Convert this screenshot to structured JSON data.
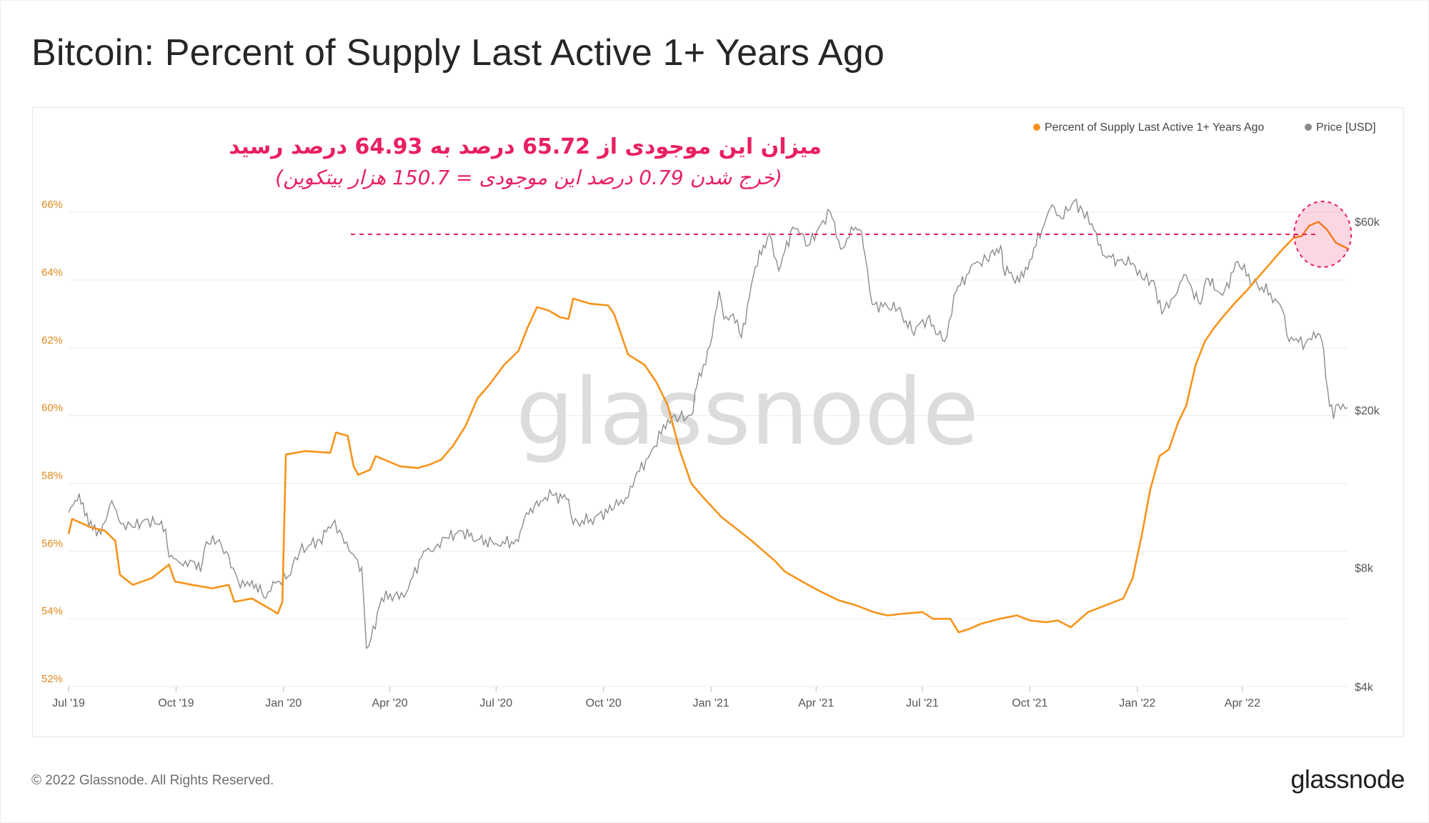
{
  "title": "Bitcoin: Percent of Supply Last Active 1+ Years Ago",
  "footer": {
    "copyright": "© 2022 Glassnode. All Rights Reserved.",
    "logo": "glassnode"
  },
  "watermark": "glassnode",
  "annotation": {
    "line1": "میزان این موجودی از 65.72 درصد به 64.93 درصد رسید",
    "line2": "(خرج شدن 0.79 درصد این موجودی = 150.7 هزار بیتکوین)",
    "color": "#e8205f",
    "reference_level": 65.35
  },
  "colors": {
    "supply": "#f7931a",
    "price": "#8c8c8c",
    "accent": "#e8205f"
  },
  "chart_data": {
    "type": "line",
    "title": "Bitcoin: Percent of Supply Last Active 1+ Years Ago",
    "x_ticks": [
      "Jul '19",
      "Oct '19",
      "Jan '20",
      "Apr '20",
      "Jul '20",
      "Oct '20",
      "Jan '21",
      "Apr '21",
      "Jul '21",
      "Oct '21",
      "Jan '22",
      "Apr '22"
    ],
    "x_tick_dates": [
      "2019-07-01",
      "2019-10-01",
      "2020-01-01",
      "2020-04-01",
      "2020-07-01",
      "2020-10-01",
      "2021-01-01",
      "2021-04-01",
      "2021-07-01",
      "2021-10-01",
      "2022-01-01",
      "2022-04-01"
    ],
    "x_range": [
      "2019-07-01",
      "2022-06-30"
    ],
    "y_left": {
      "ticks": [
        "52%",
        "54%",
        "56%",
        "58%",
        "60%",
        "62%",
        "64%",
        "66%"
      ],
      "range": [
        52,
        67.5
      ],
      "unit": "%"
    },
    "y_right": {
      "ticks": [
        "$4k",
        "$8k",
        "$20k",
        "$60k"
      ],
      "tick_values": [
        4000,
        8000,
        20000,
        60000
      ],
      "scale": "log",
      "range": [
        4000,
        85000
      ]
    },
    "grid": true,
    "legend": {
      "placement": "top-right",
      "entries": [
        "Percent of Supply Last Active 1+ Years Ago",
        "Price [USD]"
      ]
    },
    "series": [
      {
        "name": "Percent of Supply Last Active 1+ Years Ago",
        "axis": "left",
        "color": "#f7931a",
        "points": [
          [
            "2019-07-01",
            56.5
          ],
          [
            "2019-07-04",
            56.95
          ],
          [
            "2019-07-20",
            56.7
          ],
          [
            "2019-08-01",
            56.6
          ],
          [
            "2019-08-10",
            56.3
          ],
          [
            "2019-08-14",
            55.3
          ],
          [
            "2019-08-25",
            55.0
          ],
          [
            "2019-09-10",
            55.2
          ],
          [
            "2019-09-25",
            55.6
          ],
          [
            "2019-09-30",
            55.1
          ],
          [
            "2019-10-15",
            55.0
          ],
          [
            "2019-11-01",
            54.9
          ],
          [
            "2019-11-15",
            55.0
          ],
          [
            "2019-11-20",
            54.5
          ],
          [
            "2019-12-05",
            54.6
          ],
          [
            "2019-12-20",
            54.3
          ],
          [
            "2019-12-27",
            54.15
          ],
          [
            "2019-12-31",
            54.5
          ],
          [
            "2020-01-03",
            58.85
          ],
          [
            "2020-01-20",
            58.95
          ],
          [
            "2020-02-10",
            58.9
          ],
          [
            "2020-02-15",
            59.5
          ],
          [
            "2020-02-25",
            59.4
          ],
          [
            "2020-03-01",
            58.5
          ],
          [
            "2020-03-05",
            58.25
          ],
          [
            "2020-03-15",
            58.4
          ],
          [
            "2020-03-20",
            58.8
          ],
          [
            "2020-04-10",
            58.5
          ],
          [
            "2020-04-25",
            58.45
          ],
          [
            "2020-05-05",
            58.55
          ],
          [
            "2020-05-15",
            58.7
          ],
          [
            "2020-05-25",
            59.1
          ],
          [
            "2020-06-05",
            59.7
          ],
          [
            "2020-06-15",
            60.5
          ],
          [
            "2020-06-25",
            60.9
          ],
          [
            "2020-07-08",
            61.5
          ],
          [
            "2020-07-20",
            61.9
          ],
          [
            "2020-07-28",
            62.6
          ],
          [
            "2020-08-05",
            63.2
          ],
          [
            "2020-08-15",
            63.1
          ],
          [
            "2020-08-25",
            62.9
          ],
          [
            "2020-09-01",
            62.85
          ],
          [
            "2020-09-05",
            63.45
          ],
          [
            "2020-09-20",
            63.3
          ],
          [
            "2020-10-05",
            63.25
          ],
          [
            "2020-10-10",
            63.0
          ],
          [
            "2020-10-15",
            62.5
          ],
          [
            "2020-10-22",
            61.8
          ],
          [
            "2020-11-05",
            61.5
          ],
          [
            "2020-11-15",
            61.0
          ],
          [
            "2020-11-25",
            60.3
          ],
          [
            "2020-12-05",
            59.0
          ],
          [
            "2020-12-15",
            58.0
          ],
          [
            "2020-12-25",
            57.6
          ],
          [
            "2021-01-10",
            57.0
          ],
          [
            "2021-01-25",
            56.6
          ],
          [
            "2021-02-05",
            56.3
          ],
          [
            "2021-02-15",
            56.0
          ],
          [
            "2021-02-25",
            55.7
          ],
          [
            "2021-03-05",
            55.4
          ],
          [
            "2021-03-20",
            55.1
          ],
          [
            "2021-04-05",
            54.8
          ],
          [
            "2021-04-20",
            54.55
          ],
          [
            "2021-05-05",
            54.4
          ],
          [
            "2021-05-20",
            54.2
          ],
          [
            "2021-06-01",
            54.1
          ],
          [
            "2021-06-15",
            54.15
          ],
          [
            "2021-07-01",
            54.2
          ],
          [
            "2021-07-10",
            54.0
          ],
          [
            "2021-07-25",
            54.0
          ],
          [
            "2021-08-01",
            53.6
          ],
          [
            "2021-08-10",
            53.7
          ],
          [
            "2021-08-20",
            53.85
          ],
          [
            "2021-09-05",
            54.0
          ],
          [
            "2021-09-20",
            54.1
          ],
          [
            "2021-10-01",
            53.95
          ],
          [
            "2021-10-15",
            53.9
          ],
          [
            "2021-10-25",
            53.95
          ],
          [
            "2021-11-05",
            53.75
          ],
          [
            "2021-11-10",
            53.9
          ],
          [
            "2021-11-20",
            54.2
          ],
          [
            "2021-12-05",
            54.4
          ],
          [
            "2021-12-20",
            54.6
          ],
          [
            "2021-12-28",
            55.2
          ],
          [
            "2022-01-05",
            56.5
          ],
          [
            "2022-01-12",
            57.8
          ],
          [
            "2022-01-20",
            58.8
          ],
          [
            "2022-01-28",
            59.0
          ],
          [
            "2022-02-05",
            59.8
          ],
          [
            "2022-02-12",
            60.3
          ],
          [
            "2022-02-20",
            61.5
          ],
          [
            "2022-02-28",
            62.2
          ],
          [
            "2022-03-08",
            62.6
          ],
          [
            "2022-03-15",
            62.9
          ],
          [
            "2022-03-25",
            63.3
          ],
          [
            "2022-04-05",
            63.7
          ],
          [
            "2022-04-15",
            64.1
          ],
          [
            "2022-04-25",
            64.5
          ],
          [
            "2022-05-05",
            64.9
          ],
          [
            "2022-05-15",
            65.25
          ],
          [
            "2022-05-22",
            65.3
          ],
          [
            "2022-05-28",
            65.6
          ],
          [
            "2022-06-05",
            65.72
          ],
          [
            "2022-06-12",
            65.5
          ],
          [
            "2022-06-20",
            65.1
          ],
          [
            "2022-06-30",
            64.93
          ]
        ]
      },
      {
        "name": "Price [USD]",
        "axis": "right",
        "color": "#8c8c8c",
        "points": [
          [
            "2019-07-01",
            11000
          ],
          [
            "2019-07-05",
            11500
          ],
          [
            "2019-07-10",
            12300
          ],
          [
            "2019-07-15",
            10800
          ],
          [
            "2019-07-20",
            10500
          ],
          [
            "2019-07-25",
            9600
          ],
          [
            "2019-08-01",
            10400
          ],
          [
            "2019-08-07",
            11800
          ],
          [
            "2019-08-15",
            10300
          ],
          [
            "2019-08-25",
            10100
          ],
          [
            "2019-09-05",
            10600
          ],
          [
            "2019-09-15",
            10300
          ],
          [
            "2019-09-22",
            10000
          ],
          [
            "2019-09-25",
            8500
          ],
          [
            "2019-10-05",
            8200
          ],
          [
            "2019-10-15",
            8300
          ],
          [
            "2019-10-22",
            7800
          ],
          [
            "2019-10-27",
            9300
          ],
          [
            "2019-11-05",
            9300
          ],
          [
            "2019-11-15",
            8600
          ],
          [
            "2019-11-25",
            7100
          ],
          [
            "2019-12-05",
            7400
          ],
          [
            "2019-12-17",
            6700
          ],
          [
            "2019-12-25",
            7300
          ],
          [
            "2020-01-05",
            7600
          ],
          [
            "2020-01-15",
            8800
          ],
          [
            "2020-02-01",
            9400
          ],
          [
            "2020-02-12",
            10300
          ],
          [
            "2020-02-20",
            9700
          ],
          [
            "2020-02-28",
            8700
          ],
          [
            "2020-03-08",
            8000
          ],
          [
            "2020-03-12",
            5000
          ],
          [
            "2020-03-16",
            5300
          ],
          [
            "2020-03-25",
            6700
          ],
          [
            "2020-04-05",
            6800
          ],
          [
            "2020-04-15",
            6900
          ],
          [
            "2020-04-30",
            8800
          ],
          [
            "2020-05-10",
            9000
          ],
          [
            "2020-05-20",
            9500
          ],
          [
            "2020-06-01",
            9900
          ],
          [
            "2020-06-15",
            9400
          ],
          [
            "2020-07-01",
            9200
          ],
          [
            "2020-07-20",
            9300
          ],
          [
            "2020-07-27",
            11000
          ],
          [
            "2020-08-10",
            11800
          ],
          [
            "2020-08-18",
            12200
          ],
          [
            "2020-09-01",
            11900
          ],
          [
            "2020-09-05",
            10300
          ],
          [
            "2020-09-20",
            10600
          ],
          [
            "2020-10-10",
            11300
          ],
          [
            "2020-10-20",
            12000
          ],
          [
            "2020-10-28",
            13500
          ],
          [
            "2020-11-10",
            15500
          ],
          [
            "2020-11-25",
            18900
          ],
          [
            "2020-12-05",
            19100
          ],
          [
            "2020-12-15",
            19400
          ],
          [
            "2020-12-20",
            23000
          ],
          [
            "2020-12-31",
            29000
          ],
          [
            "2021-01-08",
            40000
          ],
          [
            "2021-01-12",
            34000
          ],
          [
            "2021-01-20",
            35000
          ],
          [
            "2021-01-27",
            30500
          ],
          [
            "2021-02-08",
            46000
          ],
          [
            "2021-02-20",
            56000
          ],
          [
            "2021-02-28",
            45000
          ],
          [
            "2021-03-12",
            58000
          ],
          [
            "2021-03-20",
            56000
          ],
          [
            "2021-03-25",
            52000
          ],
          [
            "2021-04-05",
            59000
          ],
          [
            "2021-04-13",
            63500
          ],
          [
            "2021-04-22",
            51000
          ],
          [
            "2021-05-03",
            57000
          ],
          [
            "2021-05-10",
            56500
          ],
          [
            "2021-05-13",
            49000
          ],
          [
            "2021-05-19",
            37000
          ],
          [
            "2021-06-01",
            36500
          ],
          [
            "2021-06-10",
            36000
          ],
          [
            "2021-06-22",
            31700
          ],
          [
            "2021-07-05",
            34000
          ],
          [
            "2021-07-20",
            29800
          ],
          [
            "2021-07-30",
            40000
          ],
          [
            "2021-08-15",
            47000
          ],
          [
            "2021-08-25",
            48000
          ],
          [
            "2021-09-06",
            52000
          ],
          [
            "2021-09-08",
            46000
          ],
          [
            "2021-09-22",
            42000
          ],
          [
            "2021-10-01",
            48000
          ],
          [
            "2021-10-15",
            61000
          ],
          [
            "2021-10-20",
            66000
          ],
          [
            "2021-10-28",
            61000
          ],
          [
            "2021-11-08",
            67500
          ],
          [
            "2021-11-15",
            64000
          ],
          [
            "2021-11-25",
            57000
          ],
          [
            "2021-12-04",
            49000
          ],
          [
            "2021-12-15",
            48000
          ],
          [
            "2021-12-28",
            47000
          ],
          [
            "2022-01-05",
            43000
          ],
          [
            "2022-01-15",
            42500
          ],
          [
            "2022-01-22",
            35000
          ],
          [
            "2022-02-01",
            38500
          ],
          [
            "2022-02-10",
            44000
          ],
          [
            "2022-02-24",
            37000
          ],
          [
            "2022-03-01",
            43000
          ],
          [
            "2022-03-15",
            39000
          ],
          [
            "2022-03-28",
            47500
          ],
          [
            "2022-04-10",
            42000
          ],
          [
            "2022-04-25",
            39500
          ],
          [
            "2022-05-05",
            36000
          ],
          [
            "2022-05-09",
            31000
          ],
          [
            "2022-05-15",
            30000
          ],
          [
            "2022-05-25",
            29500
          ],
          [
            "2022-06-01",
            31500
          ],
          [
            "2022-06-08",
            30000
          ],
          [
            "2022-06-13",
            22500
          ],
          [
            "2022-06-18",
            19000
          ],
          [
            "2022-06-22",
            20700
          ],
          [
            "2022-06-30",
            20300
          ]
        ]
      }
    ]
  }
}
